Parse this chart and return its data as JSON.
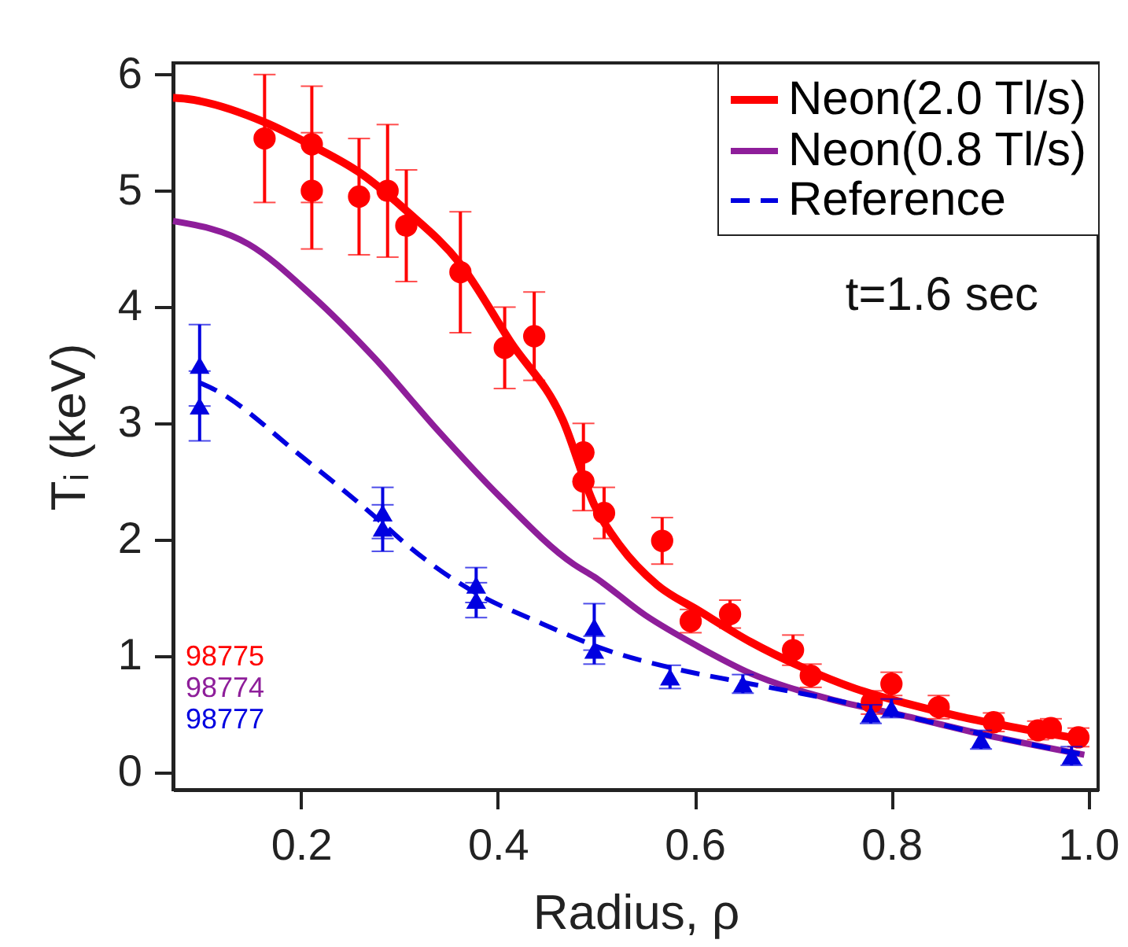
{
  "chart_data": {
    "type": "line",
    "xlabel": "Radius,  ρ",
    "ylabel": "Tᵢ (keV)",
    "xlim": [
      0.07,
      1.01
    ],
    "ylim": [
      -0.15,
      6.1
    ],
    "xticks": [
      0.2,
      0.4,
      0.6,
      0.8,
      {
        "value": 1,
        "label": "1.0"
      }
    ],
    "yticks": [
      0,
      1,
      2,
      3,
      4,
      5,
      6
    ],
    "legend": "top right",
    "annotations": [
      "t=1.6 sec",
      "98775",
      "98774",
      "98777"
    ],
    "series": [
      {
        "name": "Neon(2.0 Tl/s)",
        "type": "line",
        "color": "#ff0000",
        "line_style": "solid",
        "x": [
          0.07,
          0.084,
          0.163,
          0.211,
          0.259,
          0.307,
          0.362,
          0.413,
          0.466,
          0.498,
          0.524,
          0.562,
          0.604,
          0.657,
          0.71,
          0.763,
          0.816,
          0.869,
          0.922,
          0.996
        ],
        "values": [
          5.8,
          5.79,
          5.59,
          5.39,
          5.16,
          4.83,
          4.37,
          3.7,
          3.03,
          2.3,
          1.95,
          1.61,
          1.39,
          1.12,
          0.9,
          0.72,
          0.59,
          0.48,
          0.39,
          0.28
        ]
      },
      {
        "name": "Neon(0.8 Tl/s)",
        "type": "line",
        "color": "#8e1e9a",
        "line_style": "solid",
        "x": [
          0.07,
          0.147,
          0.211,
          0.275,
          0.339,
          0.402,
          0.477,
          0.498,
          0.55,
          0.604,
          0.657,
          0.737,
          0.816,
          0.896,
          0.996
        ],
        "values": [
          4.74,
          4.54,
          4.1,
          3.56,
          2.94,
          2.37,
          1.79,
          1.68,
          1.35,
          1.08,
          0.85,
          0.63,
          0.48,
          0.32,
          0.15
        ]
      },
      {
        "name": "Reference",
        "type": "line",
        "color": "#0000e0",
        "line_style": "dashed",
        "x": [
          0.097,
          0.11,
          0.2,
          0.283,
          0.307,
          0.378,
          0.439,
          0.518,
          0.575,
          0.657,
          0.737,
          0.816,
          0.896,
          0.996
        ],
        "values": [
          3.35,
          3.3,
          2.72,
          2.14,
          1.96,
          1.54,
          1.3,
          1.03,
          0.9,
          0.76,
          0.63,
          0.48,
          0.32,
          0.15
        ]
      },
      {
        "type": "scatter",
        "color": "#ff0000",
        "marker": "circle",
        "x": [
          0.163,
          0.211,
          0.211,
          0.259,
          0.288,
          0.307,
          0.362,
          0.407,
          0.437,
          0.487,
          0.487,
          0.508,
          0.567,
          0.596,
          0.636,
          0.7,
          0.718,
          0.78,
          0.8,
          0.848,
          0.904,
          0.949,
          0.962,
          0.99
        ],
        "values": [
          5.45,
          5.4,
          5.0,
          4.95,
          5.0,
          4.7,
          4.3,
          3.65,
          3.75,
          2.75,
          2.5,
          2.23,
          1.99,
          1.3,
          1.36,
          1.05,
          0.83,
          0.6,
          0.76,
          0.56,
          0.43,
          0.36,
          0.38,
          0.3
        ],
        "errors": [
          0.55,
          0.5,
          0.5,
          0.5,
          0.57,
          0.48,
          0.52,
          0.35,
          0.38,
          0.25,
          0.25,
          0.22,
          0.2,
          0.1,
          0.12,
          0.13,
          0.1,
          0.1,
          0.1,
          0.1,
          0.08,
          0.08,
          0.08,
          0.08
        ]
      },
      {
        "type": "scatter",
        "color": "#0000e0",
        "marker": "triangle",
        "x": [
          0.097,
          0.097,
          0.283,
          0.283,
          0.378,
          0.378,
          0.498,
          0.498,
          0.575,
          0.649,
          0.779,
          0.8,
          0.891,
          0.983
        ],
        "values": [
          3.5,
          3.15,
          2.23,
          2.1,
          1.61,
          1.48,
          1.25,
          1.05,
          0.82,
          0.76,
          0.5,
          0.55,
          0.28,
          0.14
        ],
        "errors": [
          0.35,
          0.3,
          0.22,
          0.2,
          0.15,
          0.15,
          0.2,
          0.12,
          0.1,
          0.08,
          0.08,
          0.08,
          0.08,
          0.08
        ]
      }
    ]
  }
}
